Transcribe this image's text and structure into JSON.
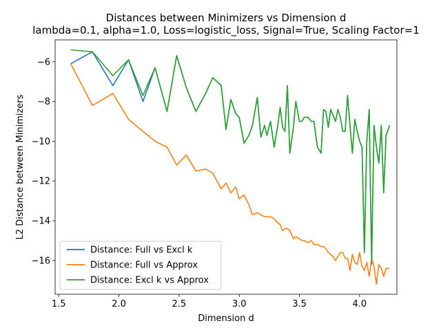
{
  "chart_data": {
    "type": "line",
    "title": "Distances between Minimizers vs Dimension d",
    "subtitle": "lambda=0.1, alpha=1.0, Loss=logistic_loss, Signal=True, Scaling Factor=1",
    "xlabel": "Dimension d",
    "ylabel": "L2 Distance between Minimizers",
    "xlim": [
      1.47,
      4.31
    ],
    "ylim": [
      -17.7,
      -4.9
    ],
    "xticks": [
      1.5,
      2.0,
      2.5,
      3.0,
      3.5,
      4.0
    ],
    "yticks": [
      -16,
      -14,
      -12,
      -10,
      -8,
      -6
    ],
    "grid": false,
    "legend_position": "lower-left",
    "series": [
      {
        "name": "Distance: Full vs Excl k",
        "color": "#1f77b4",
        "x": [
          1.6,
          1.78,
          1.95,
          2.08,
          2.2,
          2.3,
          2.4,
          2.48,
          2.56,
          2.64,
          2.72,
          2.78,
          2.85,
          2.89,
          2.93,
          2.97,
          3.0,
          3.04,
          3.08,
          3.11,
          3.15,
          3.18,
          3.21,
          3.23,
          3.26,
          3.29,
          3.32,
          3.34,
          3.36,
          3.38,
          3.4,
          3.42,
          3.45,
          3.47,
          3.5,
          3.52,
          3.54,
          3.57,
          3.6,
          3.62,
          3.65,
          3.68,
          3.7,
          3.72,
          3.74,
          3.76,
          3.78,
          3.8,
          3.82,
          3.84,
          3.86,
          3.88,
          3.9,
          3.92,
          3.94,
          3.96,
          3.98,
          4.0,
          4.02,
          4.04,
          4.06,
          4.08,
          4.1,
          4.12,
          4.14,
          4.16,
          4.18,
          4.2,
          4.22,
          4.25
        ],
        "y": [
          -6.1,
          -5.5,
          -7.2,
          -5.9,
          -8.0,
          -6.3,
          -8.5,
          -5.7,
          -7.3,
          -8.5,
          -7.6,
          -6.8,
          -7.2,
          -9.4,
          -7.9,
          -8.6,
          -8.8,
          -10.1,
          -9.7,
          -9.2,
          -7.8,
          -9.8,
          -9.2,
          -9.7,
          -9.0,
          -10.3,
          -9.2,
          -8.3,
          -9.3,
          -9.5,
          -7.2,
          -10.6,
          -9.3,
          -8.0,
          -9.0,
          -9.0,
          -8.8,
          -8.8,
          -9.0,
          -9.0,
          -10.3,
          -10.6,
          -8.4,
          -8.5,
          -9.3,
          -8.4,
          -8.7,
          -9.0,
          -8.4,
          -8.8,
          -9.5,
          -9.5,
          -7.7,
          -9.2,
          -10.6,
          -8.9,
          -9.5,
          -10.0,
          -10.3,
          -15.6,
          -10.0,
          -8.4,
          -16.2,
          -9.2,
          -10.3,
          -11.1,
          -9.2,
          -12.6,
          -9.7,
          -9.2
        ]
      },
      {
        "name": "Distance: Full vs Approx",
        "color": "#ff7f0e",
        "x": [
          1.6,
          1.78,
          1.95,
          2.08,
          2.2,
          2.3,
          2.4,
          2.48,
          2.56,
          2.64,
          2.72,
          2.78,
          2.85,
          2.89,
          2.93,
          2.97,
          3.0,
          3.04,
          3.08,
          3.11,
          3.15,
          3.18,
          3.21,
          3.23,
          3.26,
          3.29,
          3.32,
          3.34,
          3.36,
          3.38,
          3.4,
          3.42,
          3.45,
          3.47,
          3.5,
          3.52,
          3.54,
          3.57,
          3.6,
          3.62,
          3.65,
          3.68,
          3.7,
          3.72,
          3.74,
          3.76,
          3.78,
          3.8,
          3.82,
          3.84,
          3.86,
          3.88,
          3.9,
          3.92,
          3.94,
          3.96,
          3.98,
          4.0,
          4.02,
          4.04,
          4.06,
          4.08,
          4.1,
          4.12,
          4.14,
          4.16,
          4.18,
          4.2,
          4.22,
          4.25
        ],
        "y": [
          -6.1,
          -8.2,
          -7.6,
          -8.9,
          -9.5,
          -10.0,
          -10.3,
          -11.2,
          -10.7,
          -11.5,
          -11.4,
          -11.6,
          -12.4,
          -12.1,
          -12.6,
          -12.3,
          -12.9,
          -12.7,
          -13.2,
          -13.7,
          -13.6,
          -13.7,
          -13.8,
          -13.8,
          -13.8,
          -13.9,
          -14.1,
          -14.2,
          -14.5,
          -14.4,
          -14.4,
          -14.5,
          -14.9,
          -14.8,
          -14.9,
          -15.0,
          -15.0,
          -15.1,
          -15.0,
          -15.2,
          -15.2,
          -15.3,
          -15.3,
          -15.4,
          -15.6,
          -15.7,
          -15.8,
          -16.0,
          -15.8,
          -15.6,
          -15.6,
          -15.9,
          -15.9,
          -16.5,
          -15.7,
          -16.1,
          -16.2,
          -15.6,
          -16.3,
          -16.5,
          -16.1,
          -16.8,
          -15.9,
          -16.3,
          -17.2,
          -16.2,
          -16.4,
          -16.8,
          -16.4,
          -16.4
        ]
      },
      {
        "name": "Distance: Excl k vs Approx",
        "color": "#2ca02c",
        "x": [
          1.6,
          1.78,
          1.95,
          2.08,
          2.2,
          2.3,
          2.4,
          2.48,
          2.56,
          2.64,
          2.72,
          2.78,
          2.85,
          2.89,
          2.93,
          2.97,
          3.0,
          3.04,
          3.08,
          3.11,
          3.15,
          3.18,
          3.21,
          3.23,
          3.26,
          3.29,
          3.32,
          3.34,
          3.36,
          3.38,
          3.4,
          3.42,
          3.45,
          3.47,
          3.5,
          3.52,
          3.54,
          3.57,
          3.6,
          3.62,
          3.65,
          3.68,
          3.7,
          3.72,
          3.74,
          3.76,
          3.78,
          3.8,
          3.82,
          3.84,
          3.86,
          3.88,
          3.9,
          3.92,
          3.94,
          3.96,
          3.98,
          4.0,
          4.02,
          4.04,
          4.06,
          4.08,
          4.1,
          4.12,
          4.14,
          4.16,
          4.18,
          4.2,
          4.22,
          4.25
        ],
        "y": [
          -5.4,
          -5.5,
          -6.7,
          -5.9,
          -7.7,
          -6.3,
          -8.5,
          -5.7,
          -7.3,
          -8.5,
          -7.6,
          -6.8,
          -7.2,
          -9.4,
          -7.9,
          -8.6,
          -8.8,
          -10.1,
          -9.7,
          -9.2,
          -7.8,
          -9.8,
          -9.2,
          -9.7,
          -9.0,
          -10.3,
          -9.2,
          -8.3,
          -9.3,
          -9.5,
          -7.2,
          -10.6,
          -9.3,
          -8.0,
          -9.0,
          -9.0,
          -8.8,
          -8.8,
          -9.0,
          -9.0,
          -10.3,
          -10.6,
          -8.4,
          -8.5,
          -9.3,
          -8.4,
          -8.7,
          -9.0,
          -8.4,
          -8.8,
          -9.5,
          -9.5,
          -7.7,
          -9.2,
          -10.6,
          -8.9,
          -9.5,
          -10.0,
          -10.3,
          -15.6,
          -10.0,
          -8.4,
          -16.0,
          -9.2,
          -10.3,
          -11.1,
          -9.2,
          -12.6,
          -9.7,
          -9.2
        ]
      }
    ]
  }
}
